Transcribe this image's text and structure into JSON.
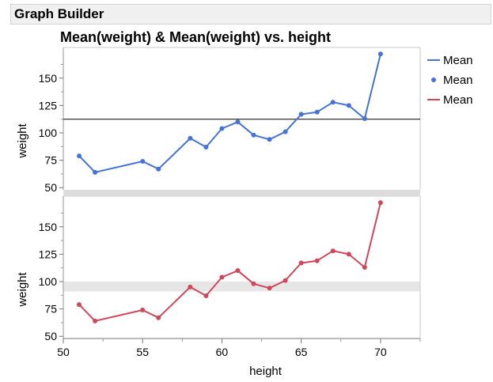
{
  "window": {
    "title": "Graph Builder"
  },
  "chart_data": {
    "type": "line",
    "title": "Mean(weight) & Mean(weight) vs. height",
    "xlabel": "height",
    "ylabel": "weight",
    "xlim": [
      50,
      72.5
    ],
    "x_ticks": [
      50,
      55,
      60,
      65,
      70
    ],
    "x": [
      51,
      52,
      55,
      56,
      58,
      59,
      60,
      61,
      62,
      63,
      64,
      65,
      66,
      67,
      68,
      69,
      70
    ],
    "panels": [
      {
        "name": "top",
        "ylim": [
          48,
          178
        ],
        "y_ticks": [
          50,
          75,
          100,
          125,
          150
        ],
        "series": [
          {
            "name": "Mean",
            "kind": "line",
            "color": "#4472d6",
            "values": [
              79,
              64,
              74,
              67,
              95,
              87,
              104,
              110,
              98,
              94,
              101,
              117,
              119,
              128,
              125,
              113,
              172
            ]
          },
          {
            "name": "Mean",
            "kind": "points",
            "color": "#4472d6",
            "values": [
              79,
              64,
              74,
              67,
              95,
              87,
              104,
              110,
              98,
              94,
              101,
              117,
              119,
              128,
              125,
              113,
              172
            ]
          }
        ],
        "reference_line": {
          "value": 112.5,
          "color": "#000000"
        }
      },
      {
        "name": "bottom",
        "ylim": [
          48,
          178
        ],
        "y_ticks": [
          50,
          75,
          100,
          125,
          150
        ],
        "series": [
          {
            "name": "Mean",
            "kind": "line+points",
            "color": "#d1475a",
            "values": [
              79,
              64,
              74,
              67,
              95,
              87,
              104,
              110,
              98,
              94,
              101,
              117,
              119,
              128,
              125,
              113,
              172
            ]
          }
        ],
        "reference_band": {
          "from": 91,
          "to": 100,
          "color": "#e6e6e6"
        }
      }
    ],
    "legend": {
      "placement": "right",
      "entries": [
        {
          "label": "Mean",
          "marker": "line",
          "color": "#4472d6"
        },
        {
          "label": "Mean",
          "marker": "dot",
          "color": "#4472d6"
        },
        {
          "label": "Mean",
          "marker": "line",
          "color": "#d1475a"
        }
      ]
    },
    "grid": false
  }
}
